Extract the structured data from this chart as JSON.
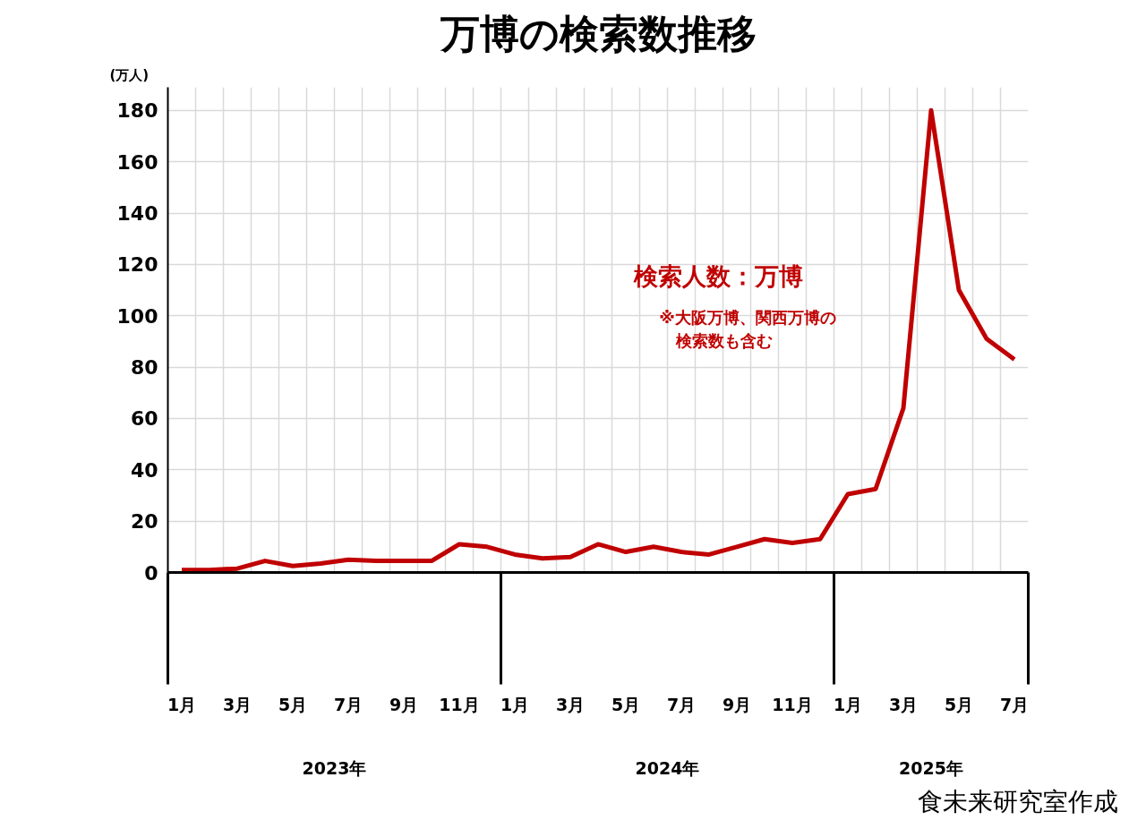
{
  "chart_data": {
    "type": "line",
    "title": "万博の検索数推移",
    "ylabel": "(万人)",
    "categories": [
      "1月",
      null,
      "3月",
      null,
      "5月",
      null,
      "7月",
      null,
      "9月",
      null,
      "11月",
      null,
      "1月",
      null,
      "3月",
      null,
      "5月",
      null,
      "7月",
      null,
      "9月",
      null,
      "11月",
      null,
      "1月",
      null,
      "3月",
      null,
      "5月",
      null,
      "7月"
    ],
    "series": [
      {
        "name": "検索人数：万博",
        "color": "#c00000",
        "values": [
          1,
          1,
          1.5,
          4.5,
          2.5,
          3.5,
          5,
          4.5,
          4.5,
          4.5,
          11,
          10,
          7,
          5.5,
          6,
          11,
          8,
          10,
          8,
          7,
          10,
          13,
          11.5,
          13,
          30.5,
          32.5,
          64,
          180,
          110,
          91,
          83
        ]
      }
    ],
    "ylim": [
      0,
      189
    ],
    "yticks": [
      0,
      20,
      40,
      60,
      80,
      100,
      120,
      140,
      160,
      180
    ],
    "grid": true,
    "legend": false,
    "marker": "none",
    "line_style": "solid",
    "annotations": [
      "※大阪万博、関西万博の",
      "検索数も含む",
      "2023年",
      "2024年",
      "2025年",
      "食未来研究室作成"
    ]
  }
}
